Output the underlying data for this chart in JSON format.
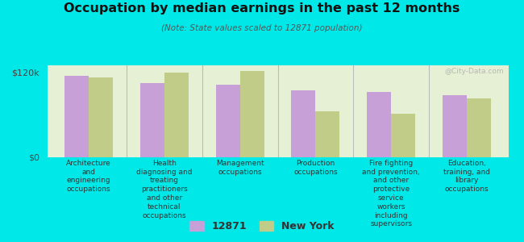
{
  "title": "Occupation by median earnings in the past 12 months",
  "subtitle": "(Note: State values scaled to 12871 population)",
  "background_color": "#00e8e8",
  "plot_bg_color": "#e6f0d4",
  "categories": [
    "Architecture\nand\nengineering\noccupations",
    "Health\ndiagnosing and\ntreating\npractitioners\nand other\ntechnical\noccupations",
    "Management\noccupations",
    "Production\noccupations",
    "Fire fighting\nand prevention,\nand other\nprotective\nservice\nworkers\nincluding\nsupervisors",
    "Education,\ntraining, and\nlibrary\noccupations"
  ],
  "values_12871": [
    115000,
    105000,
    103000,
    95000,
    92000,
    88000
  ],
  "values_ny": [
    113000,
    120000,
    122000,
    65000,
    62000,
    83000
  ],
  "color_12871": "#c8a0d8",
  "color_ny": "#c0cc88",
  "ylim": [
    0,
    130000
  ],
  "yticks": [
    0,
    120000
  ],
  "ytick_labels": [
    "$0",
    "$120k"
  ],
  "legend_label_1": "12871",
  "legend_label_2": "New York",
  "bar_width": 0.32,
  "watermark": "@City-Data.com"
}
